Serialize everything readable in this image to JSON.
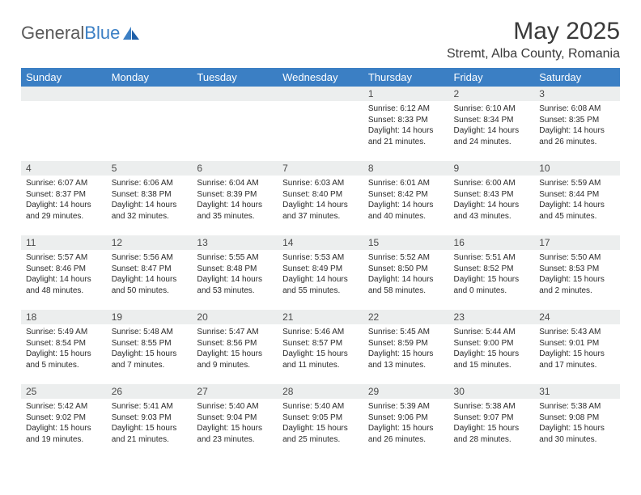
{
  "logo": {
    "word1": "General",
    "word2": "Blue"
  },
  "title": "May 2025",
  "subtitle": "Stremt, Alba County, Romania",
  "colors": {
    "header_bg": "#3b7fc4",
    "header_fg": "#ffffff",
    "daynum_bg": "#eceeee",
    "text": "#2a2a2a",
    "logo_gray": "#5a5a5a",
    "logo_blue": "#3b7fc4",
    "page_bg": "#ffffff"
  },
  "fontsize": {
    "title": 30,
    "subtitle": 16,
    "dayheader": 13,
    "daynum": 12,
    "cell": 10
  },
  "day_headers": [
    "Sunday",
    "Monday",
    "Tuesday",
    "Wednesday",
    "Thursday",
    "Friday",
    "Saturday"
  ],
  "weeks": [
    [
      null,
      null,
      null,
      null,
      {
        "n": "1",
        "sunrise": "6:12 AM",
        "sunset": "8:33 PM",
        "daylight": "14 hours and 21 minutes."
      },
      {
        "n": "2",
        "sunrise": "6:10 AM",
        "sunset": "8:34 PM",
        "daylight": "14 hours and 24 minutes."
      },
      {
        "n": "3",
        "sunrise": "6:08 AM",
        "sunset": "8:35 PM",
        "daylight": "14 hours and 26 minutes."
      }
    ],
    [
      {
        "n": "4",
        "sunrise": "6:07 AM",
        "sunset": "8:37 PM",
        "daylight": "14 hours and 29 minutes."
      },
      {
        "n": "5",
        "sunrise": "6:06 AM",
        "sunset": "8:38 PM",
        "daylight": "14 hours and 32 minutes."
      },
      {
        "n": "6",
        "sunrise": "6:04 AM",
        "sunset": "8:39 PM",
        "daylight": "14 hours and 35 minutes."
      },
      {
        "n": "7",
        "sunrise": "6:03 AM",
        "sunset": "8:40 PM",
        "daylight": "14 hours and 37 minutes."
      },
      {
        "n": "8",
        "sunrise": "6:01 AM",
        "sunset": "8:42 PM",
        "daylight": "14 hours and 40 minutes."
      },
      {
        "n": "9",
        "sunrise": "6:00 AM",
        "sunset": "8:43 PM",
        "daylight": "14 hours and 43 minutes."
      },
      {
        "n": "10",
        "sunrise": "5:59 AM",
        "sunset": "8:44 PM",
        "daylight": "14 hours and 45 minutes."
      }
    ],
    [
      {
        "n": "11",
        "sunrise": "5:57 AM",
        "sunset": "8:46 PM",
        "daylight": "14 hours and 48 minutes."
      },
      {
        "n": "12",
        "sunrise": "5:56 AM",
        "sunset": "8:47 PM",
        "daylight": "14 hours and 50 minutes."
      },
      {
        "n": "13",
        "sunrise": "5:55 AM",
        "sunset": "8:48 PM",
        "daylight": "14 hours and 53 minutes."
      },
      {
        "n": "14",
        "sunrise": "5:53 AM",
        "sunset": "8:49 PM",
        "daylight": "14 hours and 55 minutes."
      },
      {
        "n": "15",
        "sunrise": "5:52 AM",
        "sunset": "8:50 PM",
        "daylight": "14 hours and 58 minutes."
      },
      {
        "n": "16",
        "sunrise": "5:51 AM",
        "sunset": "8:52 PM",
        "daylight": "15 hours and 0 minutes."
      },
      {
        "n": "17",
        "sunrise": "5:50 AM",
        "sunset": "8:53 PM",
        "daylight": "15 hours and 2 minutes."
      }
    ],
    [
      {
        "n": "18",
        "sunrise": "5:49 AM",
        "sunset": "8:54 PM",
        "daylight": "15 hours and 5 minutes."
      },
      {
        "n": "19",
        "sunrise": "5:48 AM",
        "sunset": "8:55 PM",
        "daylight": "15 hours and 7 minutes."
      },
      {
        "n": "20",
        "sunrise": "5:47 AM",
        "sunset": "8:56 PM",
        "daylight": "15 hours and 9 minutes."
      },
      {
        "n": "21",
        "sunrise": "5:46 AM",
        "sunset": "8:57 PM",
        "daylight": "15 hours and 11 minutes."
      },
      {
        "n": "22",
        "sunrise": "5:45 AM",
        "sunset": "8:59 PM",
        "daylight": "15 hours and 13 minutes."
      },
      {
        "n": "23",
        "sunrise": "5:44 AM",
        "sunset": "9:00 PM",
        "daylight": "15 hours and 15 minutes."
      },
      {
        "n": "24",
        "sunrise": "5:43 AM",
        "sunset": "9:01 PM",
        "daylight": "15 hours and 17 minutes."
      }
    ],
    [
      {
        "n": "25",
        "sunrise": "5:42 AM",
        "sunset": "9:02 PM",
        "daylight": "15 hours and 19 minutes."
      },
      {
        "n": "26",
        "sunrise": "5:41 AM",
        "sunset": "9:03 PM",
        "daylight": "15 hours and 21 minutes."
      },
      {
        "n": "27",
        "sunrise": "5:40 AM",
        "sunset": "9:04 PM",
        "daylight": "15 hours and 23 minutes."
      },
      {
        "n": "28",
        "sunrise": "5:40 AM",
        "sunset": "9:05 PM",
        "daylight": "15 hours and 25 minutes."
      },
      {
        "n": "29",
        "sunrise": "5:39 AM",
        "sunset": "9:06 PM",
        "daylight": "15 hours and 26 minutes."
      },
      {
        "n": "30",
        "sunrise": "5:38 AM",
        "sunset": "9:07 PM",
        "daylight": "15 hours and 28 minutes."
      },
      {
        "n": "31",
        "sunrise": "5:38 AM",
        "sunset": "9:08 PM",
        "daylight": "15 hours and 30 minutes."
      }
    ]
  ],
  "labels": {
    "sunrise": "Sunrise:",
    "sunset": "Sunset:",
    "daylight": "Daylight:"
  }
}
